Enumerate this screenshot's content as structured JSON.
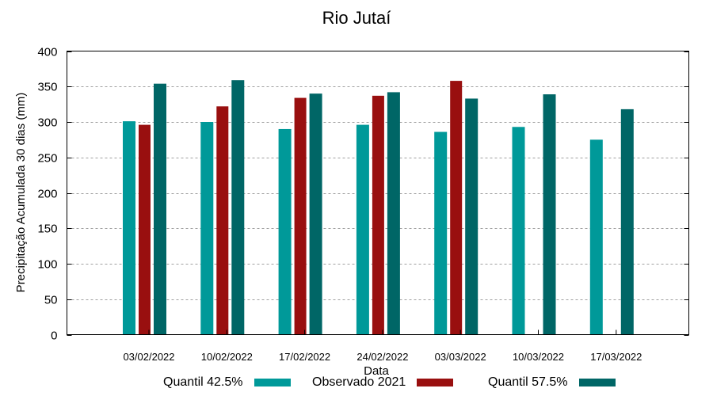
{
  "chart_data": {
    "type": "bar",
    "title": "Rio Jutaí",
    "xlabel": "Data",
    "ylabel": "Precipitação Acumulada 30 dias (mm)",
    "ylim": [
      0,
      400
    ],
    "yticks": [
      0,
      50,
      100,
      150,
      200,
      250,
      300,
      350,
      400
    ],
    "grid": true,
    "legend_position": "bottom",
    "categories": [
      "03/02/2022",
      "10/02/2022",
      "17/02/2022",
      "24/02/2022",
      "03/03/2022",
      "10/03/2022",
      "17/03/2022"
    ],
    "series": [
      {
        "name": "Quantil 42.5%",
        "color": "#009999",
        "values": [
          301,
          300,
          290,
          296,
          286,
          293,
          275
        ]
      },
      {
        "name": "Observado 2021",
        "color": "#990F0F",
        "values": [
          296,
          322,
          334,
          337,
          358,
          null,
          null
        ]
      },
      {
        "name": "Quantil 57.5%",
        "color": "#006666",
        "values": [
          354,
          359,
          340,
          342,
          333,
          339,
          318
        ]
      }
    ]
  }
}
